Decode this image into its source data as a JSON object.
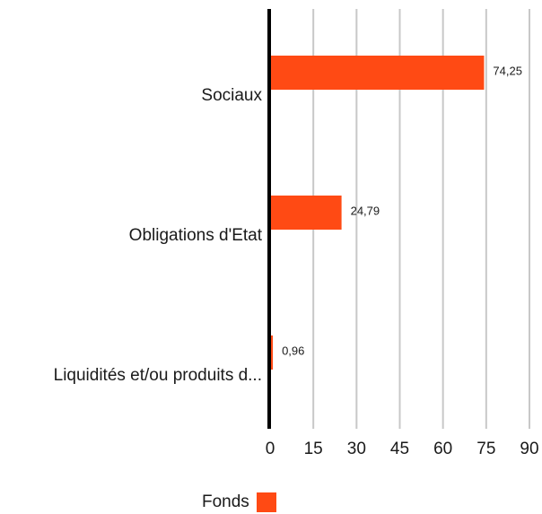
{
  "colors": {
    "bar": "#ff4a14",
    "axis": "#000000",
    "grid": "#c8c8c8",
    "text": "#1a1a1a"
  },
  "chart_data": {
    "type": "bar",
    "orientation": "horizontal",
    "categories": [
      "Sociaux",
      "Obligations d'Etat",
      "Liquidités et/ou produits d..."
    ],
    "series": [
      {
        "name": "Fonds",
        "values": [
          74.25,
          24.79,
          0.96
        ],
        "labels": [
          "74,25",
          "24,79",
          "0,96"
        ]
      }
    ],
    "x_ticks": [
      0,
      15,
      30,
      45,
      60,
      75,
      90
    ],
    "xlim": [
      0,
      90
    ],
    "grid": true,
    "legend_position": "bottom"
  }
}
